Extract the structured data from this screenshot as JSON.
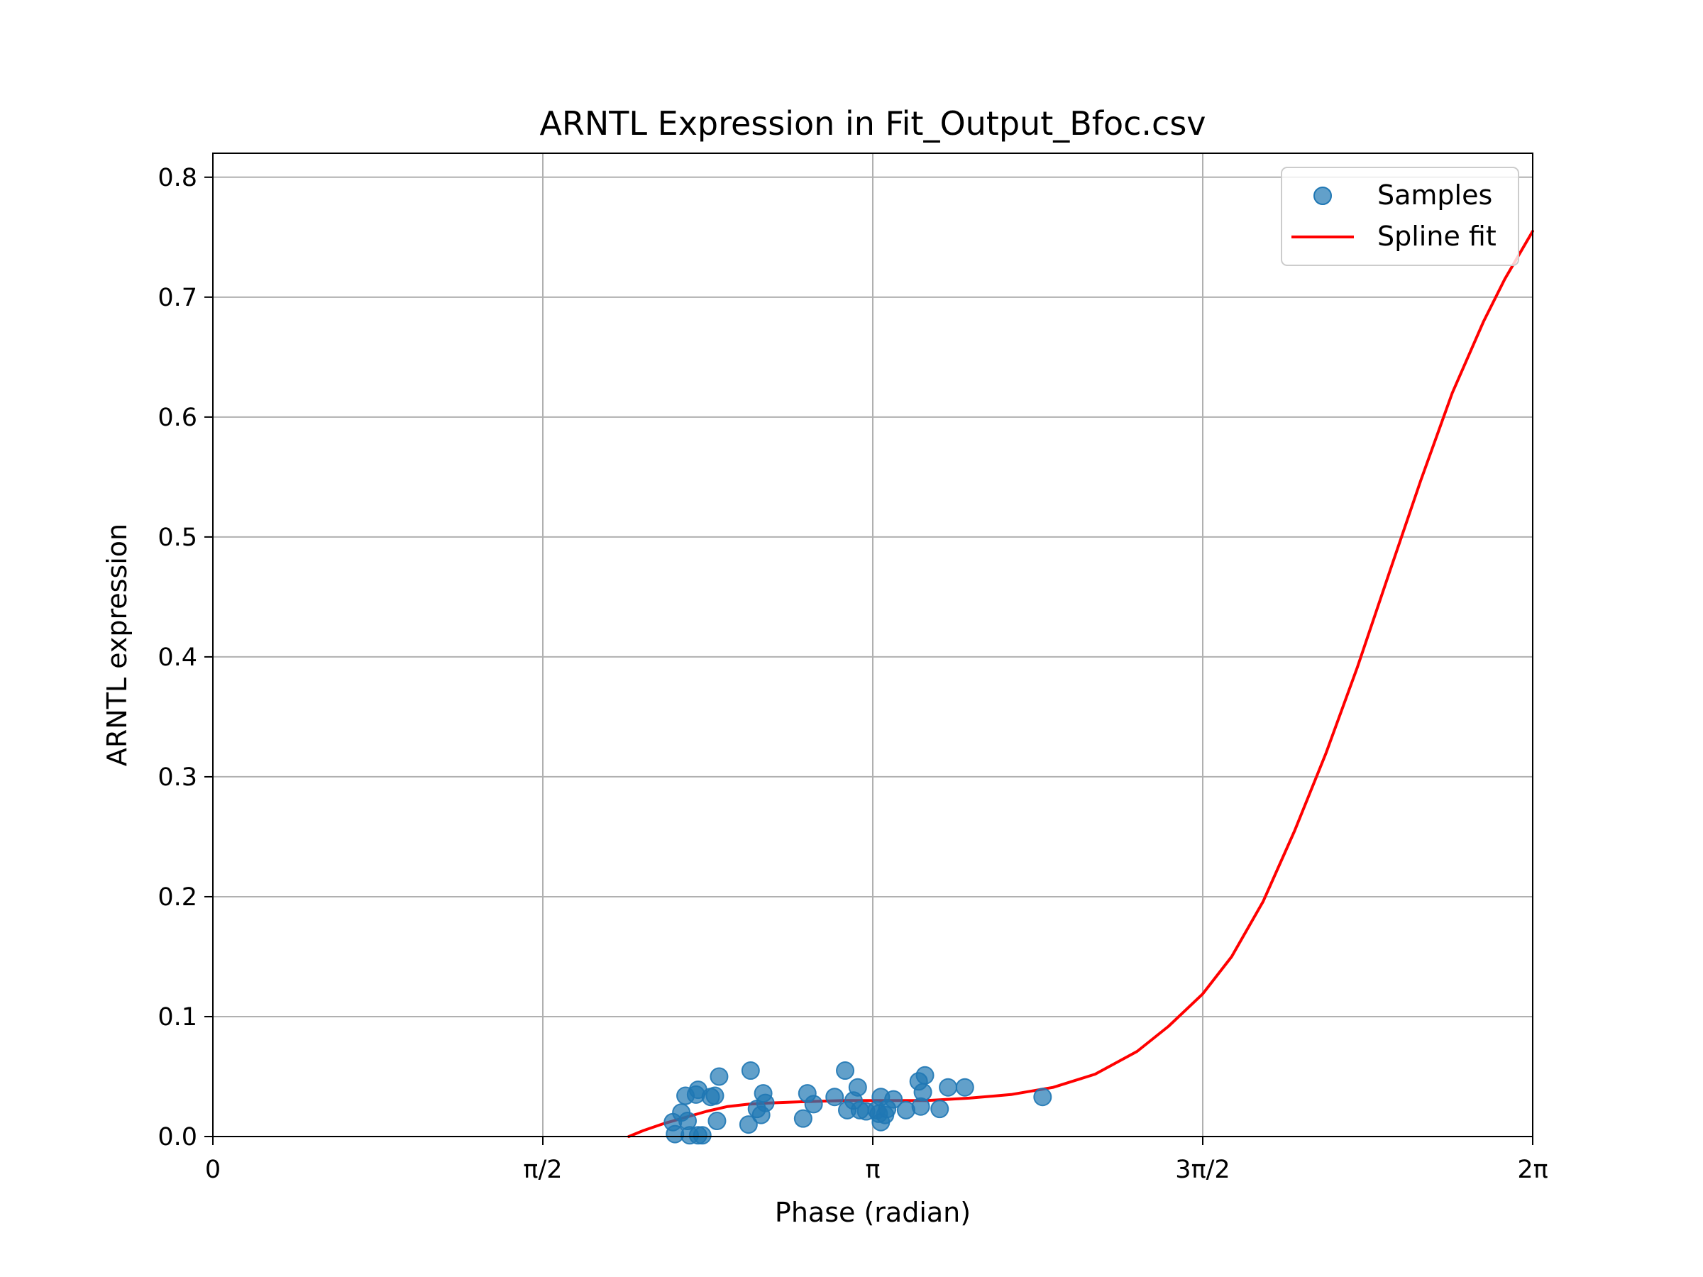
{
  "chart_data": {
    "type": "scatter",
    "title": "ARNTL Expression in Fit_Output_Bfoc.csv",
    "xlabel": "Phase (radian)",
    "ylabel": "ARNTL expression",
    "xlim": [
      0,
      6.2832
    ],
    "ylim": [
      0,
      0.82
    ],
    "x_ticks": [
      {
        "value": 0,
        "label": "0"
      },
      {
        "value": 1.5708,
        "label": "π/2"
      },
      {
        "value": 3.1416,
        "label": "π"
      },
      {
        "value": 4.7124,
        "label": "3π/2"
      },
      {
        "value": 6.2832,
        "label": "2π"
      }
    ],
    "y_ticks": [
      {
        "value": 0.0,
        "label": "0.0"
      },
      {
        "value": 0.1,
        "label": "0.1"
      },
      {
        "value": 0.2,
        "label": "0.2"
      },
      {
        "value": 0.3,
        "label": "0.3"
      },
      {
        "value": 0.4,
        "label": "0.4"
      },
      {
        "value": 0.5,
        "label": "0.5"
      },
      {
        "value": 0.6,
        "label": "0.6"
      },
      {
        "value": 0.7,
        "label": "0.7"
      },
      {
        "value": 0.8,
        "label": "0.8"
      }
    ],
    "grid": true,
    "legend_position": "top-right",
    "series": [
      {
        "name": "Samples",
        "kind": "scatter",
        "color": "#1f77b4",
        "points": [
          [
            2.19,
            0.012
          ],
          [
            2.2,
            0.002
          ],
          [
            2.23,
            0.02
          ],
          [
            2.25,
            0.034
          ],
          [
            2.26,
            0.013
          ],
          [
            2.27,
            0.001
          ],
          [
            2.3,
            0.035
          ],
          [
            2.31,
            0.039
          ],
          [
            2.31,
            0.001
          ],
          [
            2.33,
            0.001
          ],
          [
            2.37,
            0.033
          ],
          [
            2.39,
            0.034
          ],
          [
            2.4,
            0.013
          ],
          [
            2.41,
            0.05
          ],
          [
            2.55,
            0.01
          ],
          [
            2.56,
            0.055
          ],
          [
            2.59,
            0.023
          ],
          [
            2.61,
            0.018
          ],
          [
            2.62,
            0.036
          ],
          [
            2.63,
            0.028
          ],
          [
            2.81,
            0.015
          ],
          [
            2.83,
            0.036
          ],
          [
            2.86,
            0.027
          ],
          [
            2.96,
            0.033
          ],
          [
            3.01,
            0.055
          ],
          [
            3.02,
            0.022
          ],
          [
            3.05,
            0.03
          ],
          [
            3.07,
            0.041
          ],
          [
            3.08,
            0.022
          ],
          [
            3.11,
            0.021
          ],
          [
            3.16,
            0.022
          ],
          [
            3.17,
            0.019
          ],
          [
            3.18,
            0.012
          ],
          [
            3.18,
            0.033
          ],
          [
            3.2,
            0.018
          ],
          [
            3.21,
            0.023
          ],
          [
            3.24,
            0.031
          ],
          [
            3.3,
            0.022
          ],
          [
            3.36,
            0.046
          ],
          [
            3.37,
            0.025
          ],
          [
            3.38,
            0.037
          ],
          [
            3.39,
            0.051
          ],
          [
            3.46,
            0.023
          ],
          [
            3.5,
            0.041
          ],
          [
            3.58,
            0.041
          ],
          [
            3.95,
            0.033
          ]
        ]
      },
      {
        "name": "Spline fit",
        "kind": "line",
        "color": "#ff0000",
        "points": [
          [
            1.98,
            0.0
          ],
          [
            2.05,
            0.005
          ],
          [
            2.15,
            0.011
          ],
          [
            2.25,
            0.016
          ],
          [
            2.35,
            0.021
          ],
          [
            2.45,
            0.025
          ],
          [
            2.55,
            0.027
          ],
          [
            2.65,
            0.028
          ],
          [
            2.8,
            0.029
          ],
          [
            3.0,
            0.03
          ],
          [
            3.2,
            0.03
          ],
          [
            3.4,
            0.03
          ],
          [
            3.6,
            0.032
          ],
          [
            3.8,
            0.035
          ],
          [
            4.0,
            0.041
          ],
          [
            4.2,
            0.052
          ],
          [
            4.4,
            0.071
          ],
          [
            4.55,
            0.092
          ],
          [
            4.7124,
            0.119
          ],
          [
            4.85,
            0.15
          ],
          [
            5.0,
            0.196
          ],
          [
            5.15,
            0.255
          ],
          [
            5.3,
            0.32
          ],
          [
            5.45,
            0.392
          ],
          [
            5.6,
            0.47
          ],
          [
            5.75,
            0.547
          ],
          [
            5.9,
            0.62
          ],
          [
            6.05,
            0.68
          ],
          [
            6.15,
            0.715
          ],
          [
            6.2832,
            0.755
          ]
        ]
      }
    ]
  }
}
